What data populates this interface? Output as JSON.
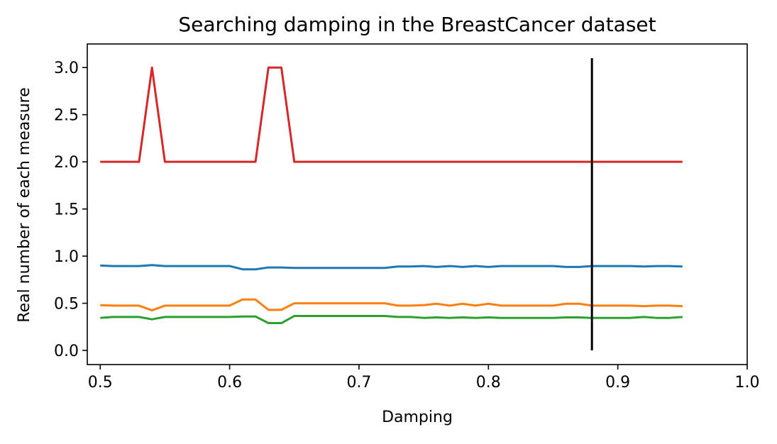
{
  "chart_data": {
    "type": "line",
    "title": "Searching damping in the BreastCancer dataset",
    "xlabel": "Damping",
    "ylabel": "Real number of each measure",
    "xlim": [
      0.49,
      1.0
    ],
    "ylim": [
      -0.15,
      3.25
    ],
    "xticks": [
      0.5,
      0.6,
      0.7,
      0.8,
      0.9,
      1.0
    ],
    "xtick_labels": [
      "0.5",
      "0.6",
      "0.7",
      "0.8",
      "0.9",
      "1.0"
    ],
    "yticks": [
      0.0,
      0.5,
      1.0,
      1.5,
      2.0,
      2.5,
      3.0
    ],
    "ytick_labels": [
      "0.0",
      "0.5",
      "1.0",
      "1.5",
      "2.0",
      "2.5",
      "3.0"
    ],
    "grid": false,
    "legend": "none",
    "x": [
      0.5,
      0.51,
      0.52,
      0.53,
      0.54,
      0.55,
      0.56,
      0.57,
      0.58,
      0.59,
      0.6,
      0.61,
      0.62,
      0.63,
      0.64,
      0.65,
      0.66,
      0.67,
      0.68,
      0.69,
      0.7,
      0.71,
      0.72,
      0.73,
      0.74,
      0.75,
      0.76,
      0.77,
      0.78,
      0.79,
      0.8,
      0.81,
      0.82,
      0.83,
      0.84,
      0.85,
      0.86,
      0.87,
      0.88,
      0.89,
      0.9,
      0.91,
      0.92,
      0.93,
      0.94,
      0.95
    ],
    "series": [
      {
        "color": "#1f77b4",
        "values": [
          0.9,
          0.895,
          0.895,
          0.895,
          0.905,
          0.895,
          0.895,
          0.895,
          0.895,
          0.895,
          0.895,
          0.86,
          0.86,
          0.88,
          0.88,
          0.875,
          0.875,
          0.875,
          0.875,
          0.875,
          0.875,
          0.875,
          0.875,
          0.89,
          0.89,
          0.895,
          0.885,
          0.895,
          0.885,
          0.895,
          0.885,
          0.895,
          0.895,
          0.895,
          0.895,
          0.895,
          0.885,
          0.885,
          0.895,
          0.895,
          0.895,
          0.895,
          0.89,
          0.895,
          0.895,
          0.89
        ]
      },
      {
        "color": "#ff7f0e",
        "values": [
          0.48,
          0.475,
          0.475,
          0.475,
          0.425,
          0.475,
          0.475,
          0.475,
          0.475,
          0.475,
          0.475,
          0.54,
          0.54,
          0.43,
          0.43,
          0.5,
          0.5,
          0.5,
          0.5,
          0.5,
          0.5,
          0.5,
          0.5,
          0.475,
          0.475,
          0.48,
          0.495,
          0.475,
          0.495,
          0.475,
          0.495,
          0.475,
          0.475,
          0.475,
          0.475,
          0.475,
          0.495,
          0.495,
          0.475,
          0.475,
          0.475,
          0.475,
          0.47,
          0.475,
          0.475,
          0.47
        ]
      },
      {
        "color": "#2ca02c",
        "values": [
          0.345,
          0.355,
          0.355,
          0.355,
          0.33,
          0.355,
          0.355,
          0.355,
          0.355,
          0.355,
          0.355,
          0.36,
          0.36,
          0.29,
          0.29,
          0.365,
          0.365,
          0.365,
          0.365,
          0.365,
          0.365,
          0.365,
          0.365,
          0.355,
          0.355,
          0.345,
          0.35,
          0.345,
          0.35,
          0.345,
          0.35,
          0.345,
          0.345,
          0.345,
          0.345,
          0.345,
          0.35,
          0.35,
          0.345,
          0.345,
          0.345,
          0.345,
          0.355,
          0.345,
          0.345,
          0.355
        ]
      },
      {
        "color": "#d62728",
        "values": [
          2,
          2,
          2,
          2,
          3,
          2,
          2,
          2,
          2,
          2,
          2,
          2,
          2,
          3,
          3,
          2,
          2,
          2,
          2,
          2,
          2,
          2,
          2,
          2,
          2,
          2,
          2,
          2,
          2,
          2,
          2,
          2,
          2,
          2,
          2,
          2,
          2,
          2,
          2,
          2,
          2,
          2,
          2,
          2,
          2,
          2
        ]
      }
    ],
    "vline": {
      "x": 0.88,
      "ymin": 0.0,
      "ymax": 3.1,
      "color": "#000000"
    }
  }
}
